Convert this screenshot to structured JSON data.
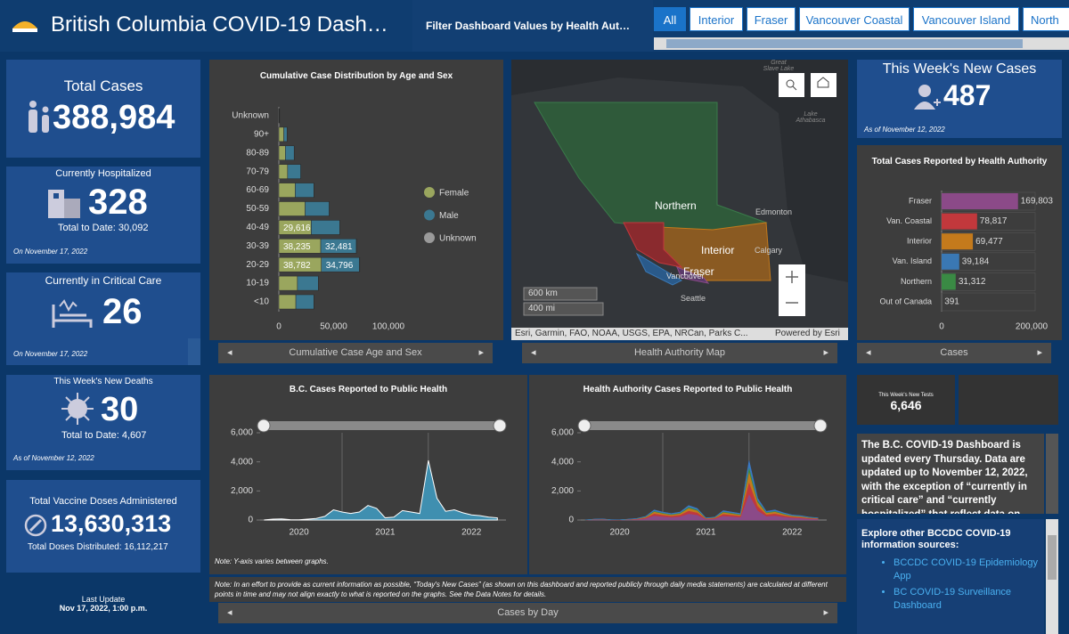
{
  "header": {
    "title": "British Columbia COVID-19 Dash…",
    "filter_label": "Filter Dashboard Values by Health Aut…",
    "tabs": [
      "All",
      "Interior",
      "Fraser",
      "Vancouver Coastal",
      "Vancouver Island",
      "North"
    ]
  },
  "total_cases": {
    "label": "Total Cases",
    "value": "388,984"
  },
  "hospitalized": {
    "label": "Currently Hospitalized",
    "value": "328",
    "total": "Total to Date: 30,092",
    "date": "On November 17, 2022"
  },
  "critical_care": {
    "label": "Currently in Critical Care",
    "value": "26",
    "date": "On November 17, 2022"
  },
  "deaths": {
    "label": "This Week's New Deaths",
    "value": "30",
    "total": "Total to Date: 4,607",
    "date": "As of November 12, 2022"
  },
  "vaccine": {
    "label": "Total Vaccine Doses Administered",
    "value": "13,630,313",
    "distributed": "Total Doses Distributed: 16,112,217"
  },
  "last_update": {
    "label": "Last Update",
    "value": "Nov 17, 2022, 1:00 p.m."
  },
  "age_chart": {
    "type": "bar",
    "orientation": "horizontal",
    "stacked": true,
    "title": "Cumulative Case Distribution by Age and Sex",
    "footer": "Cumulative Case Age and Sex",
    "categories": [
      "Unknown",
      "90+",
      "80-89",
      "70-79",
      "60-69",
      "50-59",
      "40-49",
      "30-39",
      "20-29",
      "10-19",
      "<10"
    ],
    "series": [
      {
        "name": "Female",
        "color": "#9aa65e",
        "values": [
          300,
          4500,
          6000,
          8000,
          15000,
          24000,
          29616,
          38235,
          38782,
          17000,
          15500
        ],
        "value_labels": [
          null,
          null,
          null,
          null,
          null,
          null,
          "29,616",
          "38,235",
          "38,782",
          null,
          null
        ]
      },
      {
        "name": "Male",
        "color": "#3b7891",
        "values": [
          300,
          3000,
          8000,
          12000,
          17000,
          22000,
          26000,
          32481,
          34796,
          19000,
          16500
        ],
        "value_labels": [
          null,
          null,
          null,
          null,
          null,
          null,
          null,
          "32,481",
          "34,796",
          null,
          null
        ]
      },
      {
        "name": "Unknown",
        "color": "#9a9a9a",
        "values": [
          100,
          50,
          50,
          50,
          100,
          150,
          200,
          250,
          300,
          100,
          100
        ]
      }
    ],
    "xlim": [
      0,
      100000
    ],
    "xticks": [
      0,
      {
        "value": 50000,
        "label": "50,000"
      },
      {
        "value": 100000,
        "label": "100,000"
      }
    ],
    "legend": "right"
  },
  "map": {
    "footer": "Health Authority Map",
    "labels": [
      "Northern",
      "Interior",
      "Fraser",
      "Vancouver",
      "Edmonton",
      "Calgary",
      "Seattle"
    ],
    "water_labels": [
      "Great Slave Lake",
      "Lake Athabasca"
    ],
    "scale": [
      "600 km",
      "400 mi"
    ],
    "attribution": "Esri, Garmin, FAO, NOAA, USGS, EPA, NRCan, Parks C...",
    "powered": "Powered by Esri"
  },
  "new_cases": {
    "label": "This Week's New Cases",
    "value": "487",
    "date": "As of November 12, 2022"
  },
  "ha_chart": {
    "type": "bar",
    "orientation": "horizontal",
    "title": "Total Cases Reported by Health Authority",
    "footer": "Cases",
    "categories": [
      "Fraser",
      "Van. Coastal",
      "Interior",
      "Van. Island",
      "Northern",
      "Out of Canada"
    ],
    "values": [
      169803,
      78817,
      69477,
      39184,
      31312,
      391
    ],
    "value_labels": [
      "169,803",
      "78,817",
      "69,477",
      "39,184",
      "31,312",
      "391"
    ],
    "colors": [
      "#8b4a88",
      "#c2383c",
      "#c47a1c",
      "#3a78b4",
      "#3a8a44",
      "#8a8a8a"
    ],
    "xlim": [
      0,
      200000
    ],
    "xticks": [
      0,
      {
        "value": 200000,
        "label": "200,000"
      }
    ]
  },
  "tests": {
    "label": "This Week's New Tests",
    "value": "6,646"
  },
  "info": {
    "text": "The B.C. COVID-19 Dashboard is updated every Thursday. Data are updated up to November 12, 2022, with the exception of “currently in critical care” and “currently hospitalized” that reflect data on"
  },
  "explore": {
    "heading": "Explore other BCCDC COVID-19 information sources:",
    "links": [
      "BCCDC COVID-19 Epidemiology App",
      "BC COVID-19 Surveillance Dashboard"
    ]
  },
  "bc_chart": {
    "type": "area",
    "title": "B.C. Cases Reported to Public Health",
    "x": [
      2020.1,
      2020.2,
      2020.3,
      2020.4,
      2020.5,
      2020.6,
      2020.7,
      2020.8,
      2020.9,
      2021.0,
      2021.1,
      2021.2,
      2021.3,
      2021.4,
      2021.5,
      2021.6,
      2021.7,
      2021.8,
      2021.9,
      2022.0,
      2022.1,
      2022.2,
      2022.3,
      2022.4,
      2022.5,
      2022.6,
      2022.7,
      2022.8
    ],
    "series": [
      {
        "color": "#3f8fb0",
        "values": [
          5,
          60,
          80,
          20,
          15,
          60,
          110,
          250,
          700,
          550,
          450,
          550,
          1000,
          800,
          150,
          200,
          650,
          550,
          450,
          4100,
          1500,
          600,
          700,
          500,
          350,
          300,
          200,
          150
        ]
      }
    ],
    "xlim": [
      2020.05,
      2022.9
    ],
    "xticks": [
      {
        "value": 2020.5,
        "label": "2020"
      },
      {
        "value": 2021.5,
        "label": "2021"
      },
      {
        "value": 2022.5,
        "label": "2022"
      }
    ],
    "xgrid": [
      2021,
      2022
    ],
    "ylim": [
      0,
      6000
    ],
    "yticks": [
      0,
      {
        "value": 2000,
        "label": "2,000"
      },
      {
        "value": 4000,
        "label": "4,000"
      },
      {
        "value": 6000,
        "label": "6,000"
      }
    ]
  },
  "ha_time_chart": {
    "type": "area",
    "stacked": true,
    "title": "Health Authority Cases Reported to Public Health",
    "x": [
      2020.1,
      2020.2,
      2020.3,
      2020.4,
      2020.5,
      2020.6,
      2020.7,
      2020.8,
      2020.9,
      2021.0,
      2021.1,
      2021.2,
      2021.3,
      2021.4,
      2021.5,
      2021.6,
      2021.7,
      2021.8,
      2021.9,
      2022.0,
      2022.1,
      2022.2,
      2022.3,
      2022.4,
      2022.5,
      2022.6,
      2022.7,
      2022.8
    ],
    "series": [
      {
        "color": "#8b4a88",
        "values": [
          2,
          26,
          35,
          9,
          7,
          26,
          48,
          110,
          308,
          242,
          198,
          242,
          440,
          352,
          66,
          88,
          286,
          242,
          198,
          1804,
          660,
          264,
          308,
          220,
          154,
          132,
          88,
          66
        ]
      },
      {
        "color": "#c2383c",
        "values": [
          1,
          12,
          16,
          4,
          3,
          12,
          22,
          50,
          140,
          110,
          90,
          110,
          200,
          160,
          30,
          40,
          130,
          110,
          90,
          820,
          300,
          120,
          140,
          100,
          70,
          60,
          40,
          30
        ]
      },
      {
        "color": "#c47a1c",
        "values": [
          1,
          11,
          14,
          4,
          3,
          11,
          20,
          45,
          126,
          99,
          81,
          99,
          180,
          144,
          27,
          36,
          117,
          99,
          81,
          738,
          270,
          108,
          126,
          90,
          63,
          54,
          36,
          27
        ]
      },
      {
        "color": "#3a8a44",
        "values": [
          0,
          5,
          6,
          1,
          1,
          5,
          9,
          20,
          56,
          44,
          36,
          44,
          80,
          64,
          12,
          16,
          52,
          44,
          36,
          328,
          120,
          48,
          56,
          40,
          28,
          24,
          16,
          12
        ]
      },
      {
        "color": "#3a78c4",
        "values": [
          1,
          6,
          8,
          2,
          1,
          6,
          11,
          25,
          70,
          55,
          45,
          55,
          100,
          80,
          15,
          20,
          65,
          55,
          45,
          410,
          150,
          60,
          70,
          50,
          35,
          30,
          20,
          15
        ]
      }
    ],
    "xlim": [
      2020.05,
      2022.9
    ],
    "xticks": [
      {
        "value": 2020.5,
        "label": "2020"
      },
      {
        "value": 2021.5,
        "label": "2021"
      },
      {
        "value": 2022.5,
        "label": "2022"
      }
    ],
    "xgrid": [
      2021,
      2022
    ],
    "ylim": [
      0,
      6000
    ],
    "yticks": [
      0,
      {
        "value": 2000,
        "label": "2,000"
      },
      {
        "value": 4000,
        "label": "4,000"
      },
      {
        "value": 6000,
        "label": "6,000"
      }
    ]
  },
  "notes": {
    "y_axis": "Note: Y-axis varies between graphs.",
    "main": "Note: In an effort to provide as current information as possible, “Today's New Cases” (as shown on this dashboard and reported publicly through daily media statements) are calculated at different points in time and may not align exactly to what is reported on the graphs. See the Data Notes for details.",
    "footer": "Cases by Day"
  }
}
